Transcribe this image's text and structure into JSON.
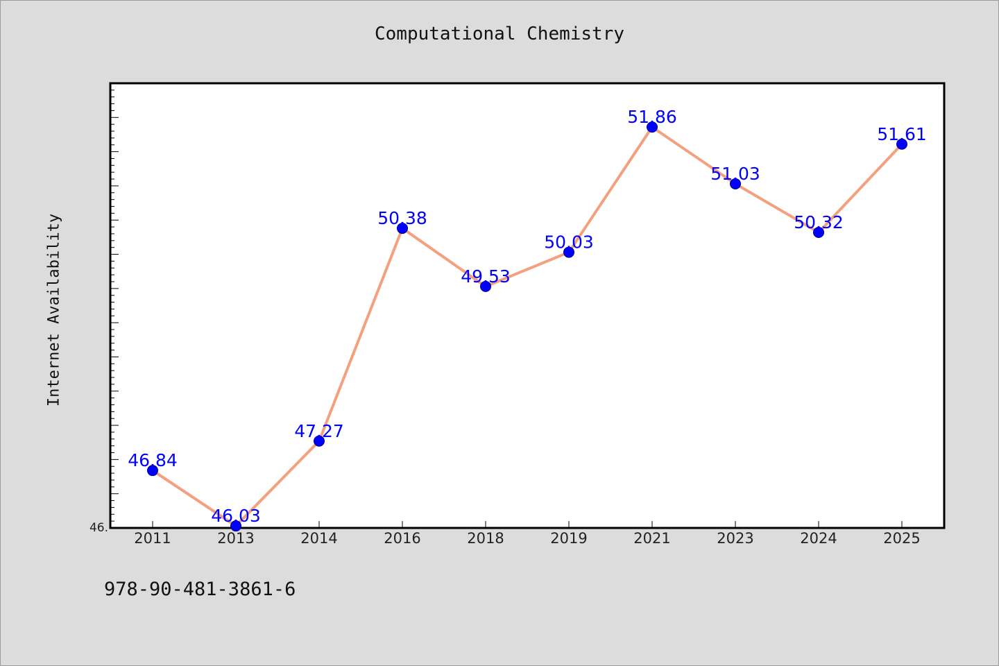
{
  "chart_data": {
    "type": "line",
    "title": "Computational Chemistry",
    "xlabel": "",
    "ylabel": "Internet Availability",
    "categories": [
      "2011",
      "2013",
      "2014",
      "2016",
      "2018",
      "2019",
      "2021",
      "2023",
      "2024",
      "2025"
    ],
    "series": [
      {
        "values": [
          46.84,
          46.03,
          47.27,
          50.38,
          49.53,
          50.03,
          51.86,
          51.03,
          50.32,
          51.61
        ],
        "data_labels": [
          "46.84",
          "46.03",
          "47.27",
          "50.38",
          "49.53",
          "50.03",
          "51.86",
          "51.03",
          "50.32",
          "51.61"
        ]
      }
    ],
    "y_tick_label": "46.",
    "ylim": [
      46.0,
      52.5
    ],
    "grid": false,
    "legend": "none",
    "colors": {
      "line": "#f4a07f",
      "marker": "#0000ff",
      "data_label": "#0000ff",
      "plot_background": "#ffffff",
      "page_background": "#dcdcdc"
    }
  },
  "footer": {
    "code": "978-90-481-3861-6"
  }
}
